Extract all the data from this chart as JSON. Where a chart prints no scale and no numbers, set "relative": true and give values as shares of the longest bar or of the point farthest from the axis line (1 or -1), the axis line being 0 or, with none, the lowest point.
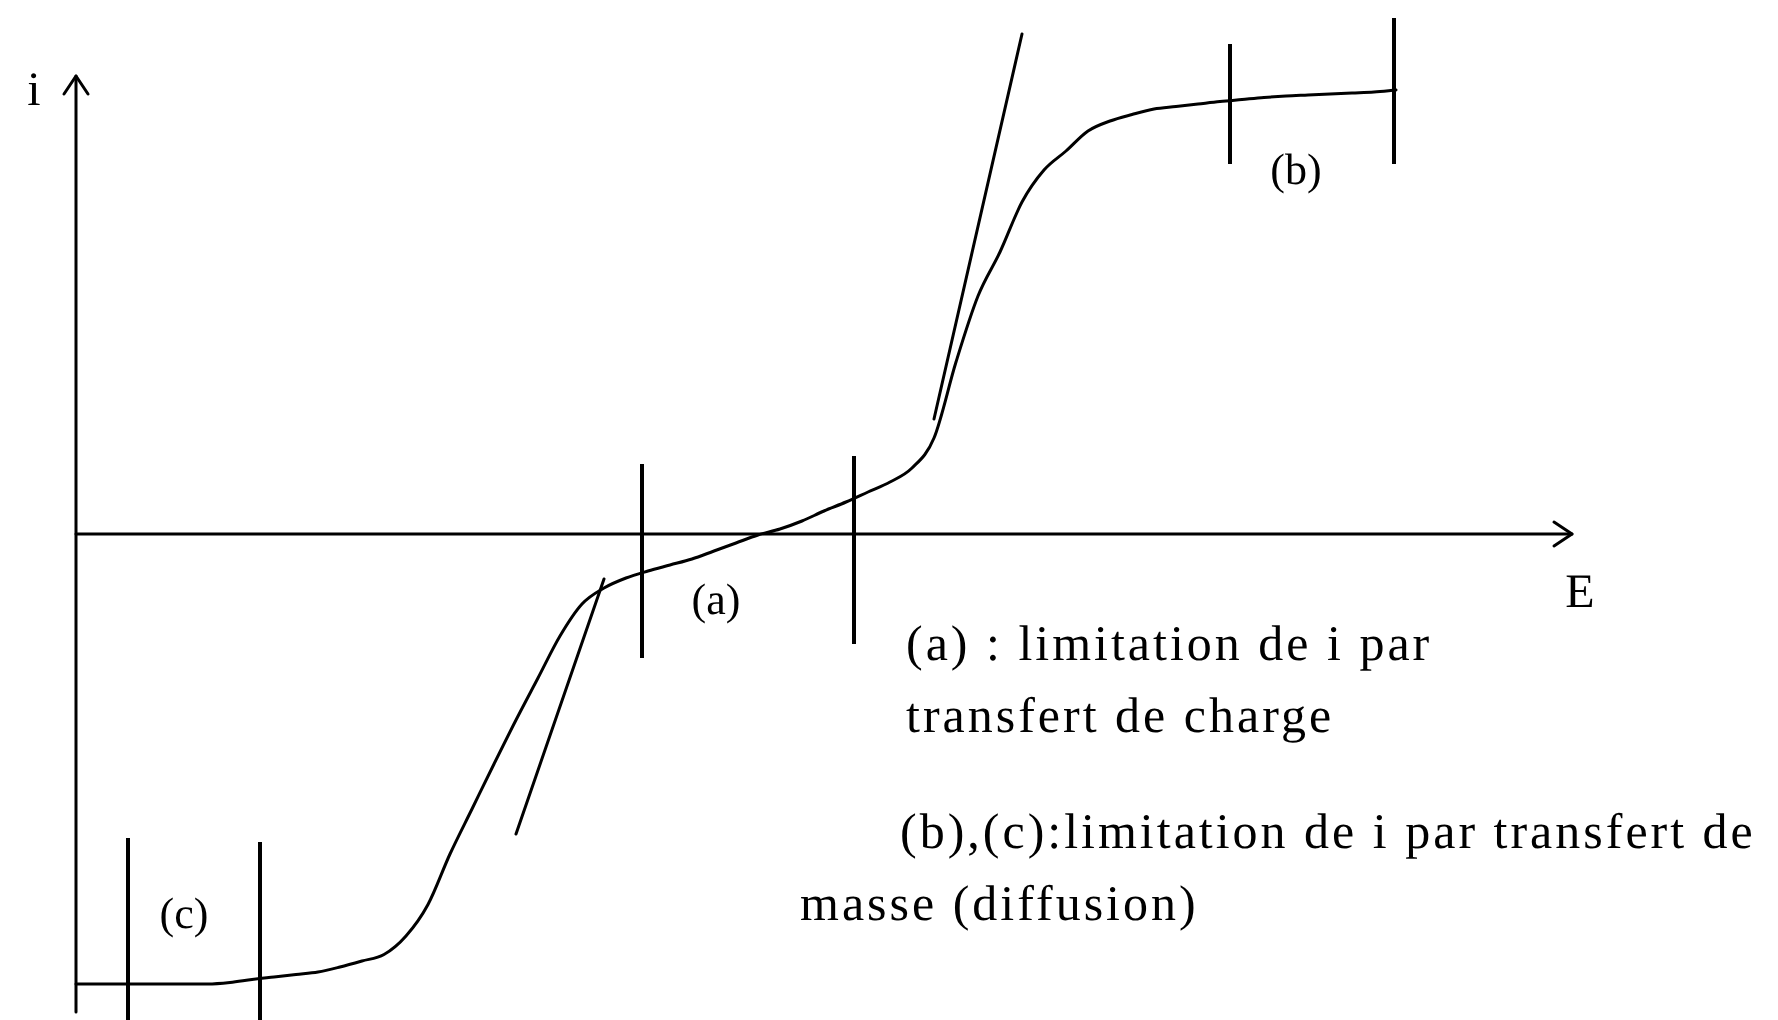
{
  "chart_data": {
    "type": "line",
    "xlabel": "E",
    "ylabel": "i",
    "relative": true,
    "tick_labels": false,
    "grid": false,
    "legend": false,
    "marker": "none",
    "line_style": "solid",
    "categories": [
      null,
      null,
      null,
      null,
      null,
      null,
      null,
      null,
      null,
      null,
      null,
      null,
      null,
      null,
      null,
      null,
      null,
      null,
      null,
      null,
      null,
      null,
      null,
      null,
      null,
      null,
      null,
      null,
      null,
      null,
      null,
      null,
      null,
      null,
      null,
      null,
      null,
      null,
      null,
      null,
      null,
      null,
      null,
      null,
      null,
      null,
      null,
      null,
      null,
      null,
      null,
      null,
      null,
      null,
      null,
      null,
      null,
      null,
      null,
      null,
      null,
      null,
      null,
      null,
      null,
      null,
      null,
      null,
      null
    ],
    "series": [
      {
        "color": "#000000",
        "values": [
          -0.9,
          -0.9,
          -0.9,
          -0.9,
          -0.9,
          -0.9,
          -0.9,
          -0.897,
          -0.891,
          -0.886,
          -0.881,
          -0.876,
          -0.866,
          -0.854,
          -0.841,
          -0.804,
          -0.741,
          -0.64,
          -0.55,
          -0.46,
          -0.372,
          -0.288,
          -0.204,
          -0.14,
          -0.108,
          -0.088,
          -0.074,
          -0.062,
          -0.05,
          -0.034,
          -0.018,
          -0.002,
          0.01,
          0.026,
          0.046,
          0.064,
          0.084,
          0.104,
          0.132,
          0.192,
          0.344,
          0.476,
          0.564,
          0.664,
          0.728,
          0.766,
          0.806,
          0.826,
          0.839,
          0.85,
          0.855,
          0.86,
          0.865,
          0.869,
          0.873,
          0.876,
          0.878,
          0.88,
          0.882,
          0.884,
          0.888,
          null,
          null,
          null,
          null,
          null,
          null,
          null,
          null
        ]
      },
      {
        "color": "#000000",
        "values": [
          null,
          null,
          null,
          null,
          null,
          null,
          null,
          null,
          null,
          null,
          null,
          null,
          null,
          null,
          null,
          null,
          null,
          null,
          null,
          null,
          -0.6,
          null,
          null,
          null,
          -0.09,
          null,
          null,
          null,
          null,
          null,
          null,
          null,
          null,
          null,
          null,
          null,
          null,
          null,
          null,
          null,
          null,
          null,
          null,
          null,
          null,
          null,
          null,
          null,
          null,
          null,
          null,
          null,
          null,
          null,
          null,
          null,
          null,
          null,
          null,
          null,
          null,
          null,
          null,
          null,
          null,
          null,
          null,
          null,
          null
        ]
      },
      {
        "color": "#000000",
        "values": [
          null,
          null,
          null,
          null,
          null,
          null,
          null,
          null,
          null,
          null,
          null,
          null,
          null,
          null,
          null,
          null,
          null,
          null,
          null,
          null,
          null,
          null,
          null,
          null,
          null,
          null,
          null,
          null,
          null,
          null,
          null,
          null,
          null,
          null,
          null,
          null,
          null,
          null,
          null,
          0.23,
          null,
          null,
          null,
          1,
          null,
          null,
          null,
          null,
          null,
          null,
          null,
          null,
          null,
          null,
          null,
          null,
          null,
          null,
          null,
          null,
          null,
          null,
          null,
          null,
          null,
          null,
          null,
          null,
          null
        ]
      }
    ],
    "annotations": [
      "(a)",
      "(b)",
      "(c)",
      "(a) : limitation de i par transfert de charge",
      "(b),(c):limitation de i par transfert de masse (diffusion)"
    ]
  }
}
